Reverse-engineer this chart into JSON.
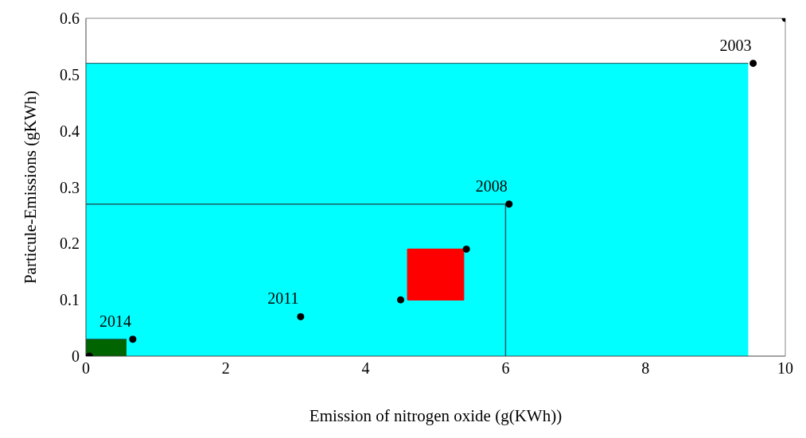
{
  "chart_data": {
    "type": "scatter",
    "xlabel": "Emission of nitrogen oxide (g(KWh))",
    "ylabel": "Particule-Emissions (gKWh)",
    "xlim": [
      0,
      10
    ],
    "xticks": [
      0,
      2,
      4,
      6,
      8,
      10
    ],
    "ylim": [
      0,
      0.6
    ],
    "yticks": [
      0,
      0.1,
      0.2,
      0.3,
      0.4,
      0.5,
      0.6
    ],
    "grid": false,
    "series": [
      {
        "type": "area",
        "color": "#00ffff",
        "x": [
          0,
          9.47
        ],
        "values": [
          0.52,
          0.52
        ]
      },
      {
        "type": "line",
        "color": "#1f5f66",
        "x": [
          0,
          6,
          6
        ],
        "values": [
          0.27,
          0.27,
          0
        ]
      },
      {
        "type": "area",
        "color": "#006400",
        "x": [
          0,
          0.58
        ],
        "values": [
          0.03,
          0.03
        ]
      },
      {
        "type": "area",
        "color": "#ff0000",
        "x": [
          4.6,
          5.4,
          5.4,
          4.6,
          4.6
        ],
        "values": [
          0.1,
          0.1,
          0.19,
          0.19,
          0.1
        ]
      },
      {
        "color": "#000000",
        "marker": "circle",
        "x": [
          0.05,
          0.67,
          3.07,
          4.5,
          5.44,
          6.05,
          9.54,
          10
        ],
        "values": [
          0,
          0.03,
          0.07,
          0.1,
          0.19,
          0.27,
          0.52,
          0.6
        ]
      }
    ],
    "annotations": [
      {
        "text": "2014",
        "x": 0.67,
        "y": 0.03
      },
      {
        "text": "2011",
        "x": 3.07,
        "y": 0.07
      },
      {
        "text": "2008",
        "x": 6.05,
        "y": 0.27
      },
      {
        "text": "2003",
        "x": 9.54,
        "y": 0.52
      }
    ]
  }
}
